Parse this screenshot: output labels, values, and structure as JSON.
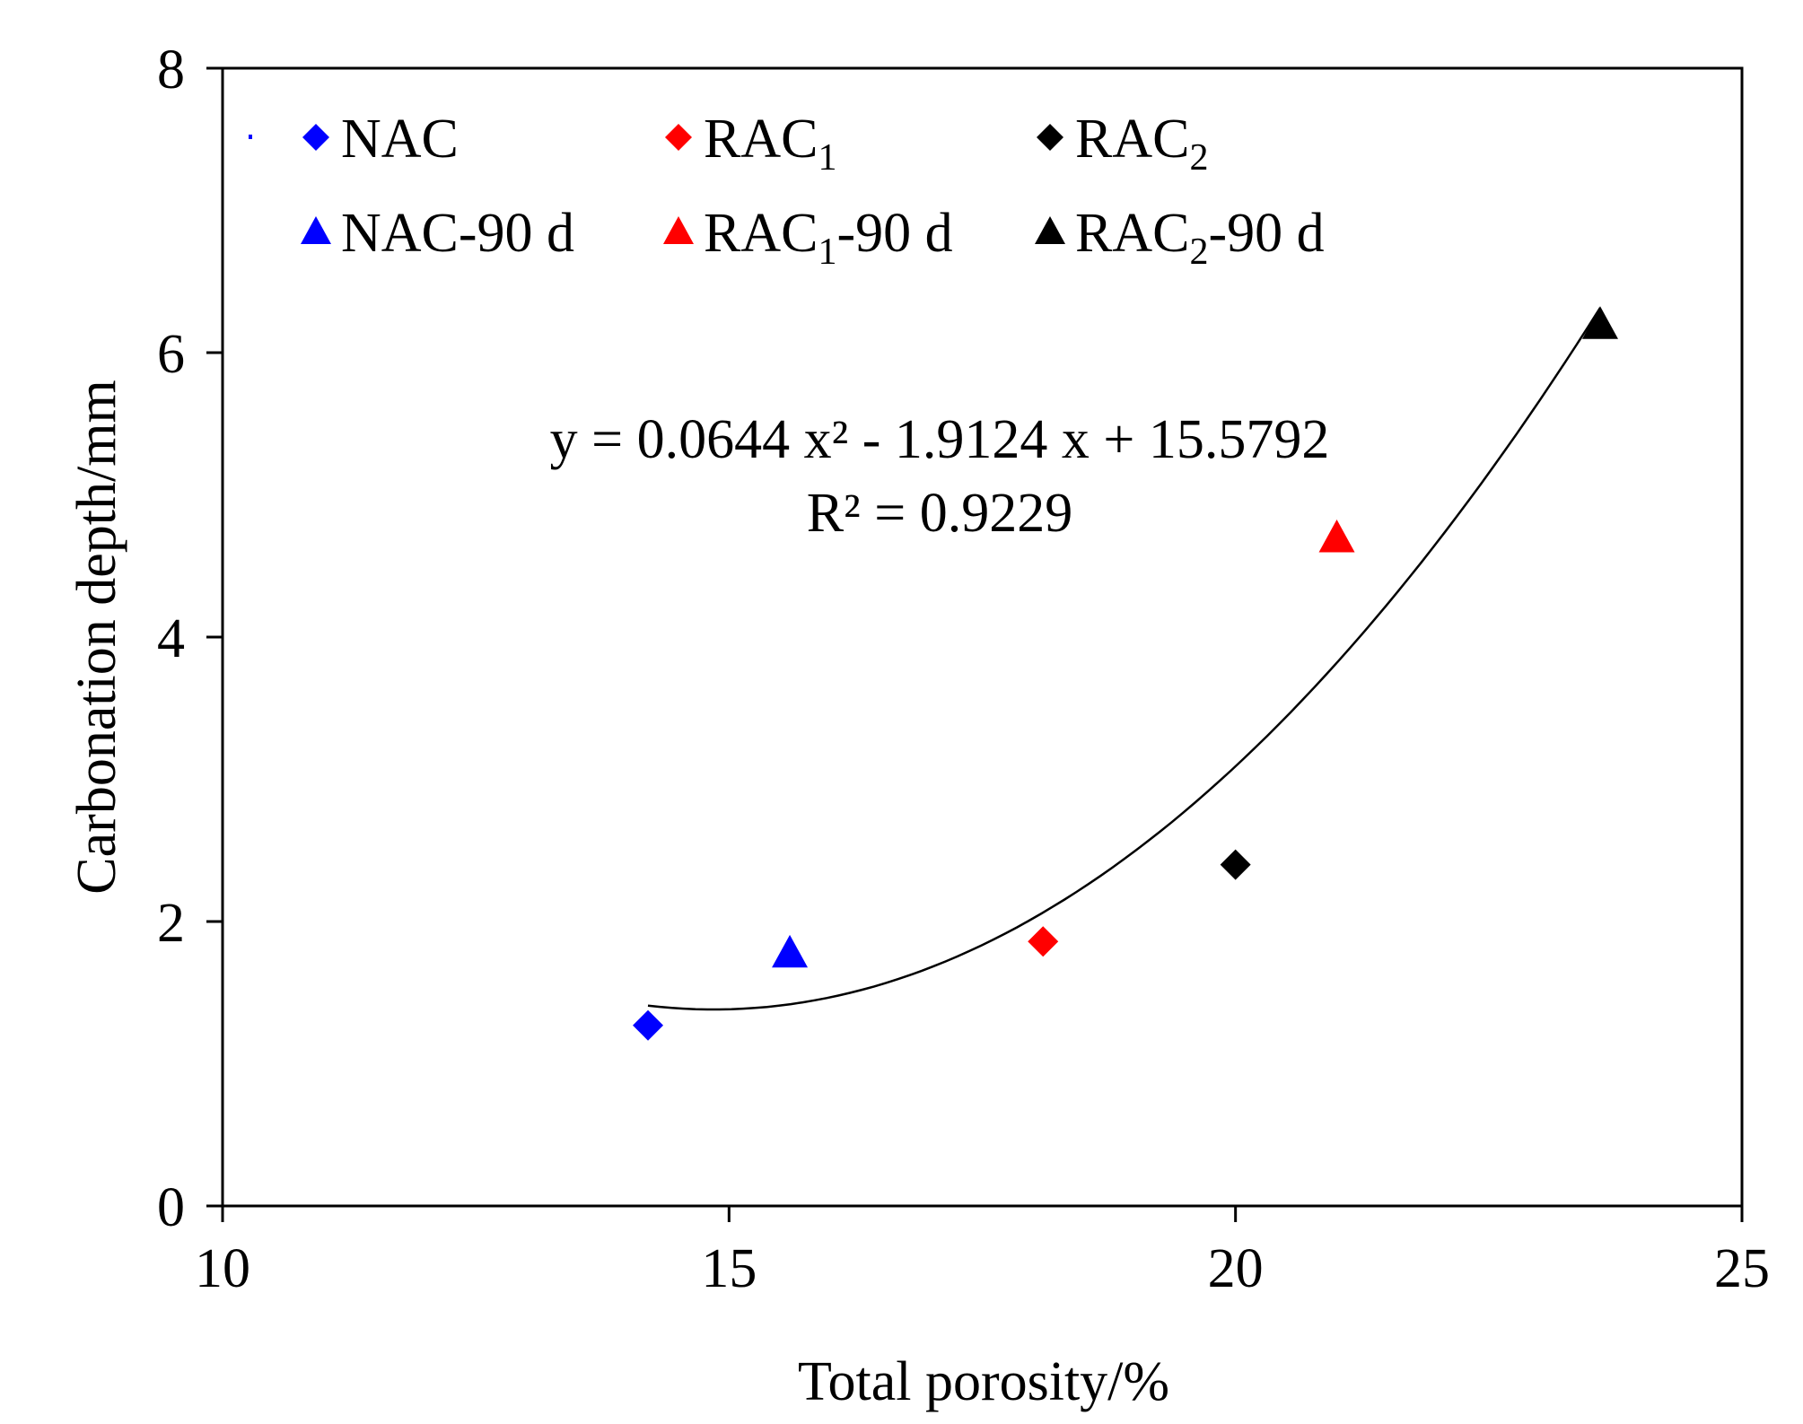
{
  "chart_data": {
    "type": "scatter",
    "title": "",
    "xlabel": "Total porosity/%",
    "ylabel": "Carbonation depth/mm",
    "xlim": [
      10,
      25
    ],
    "ylim": [
      0,
      8
    ],
    "xticks": [
      10,
      15,
      20,
      25
    ],
    "yticks": [
      0,
      2,
      4,
      6,
      8
    ],
    "grid": false,
    "legend_position": "top",
    "series": [
      {
        "name": "NAC",
        "base": "NAC",
        "sub": "",
        "suffix": "",
        "marker": "diamond",
        "color": "#0000ff",
        "points": [
          [
            14.2,
            1.27
          ]
        ]
      },
      {
        "name": "RAC1",
        "base": "RAC",
        "sub": "1",
        "suffix": "",
        "marker": "diamond",
        "color": "#ff0000",
        "points": [
          [
            18.1,
            1.86
          ]
        ]
      },
      {
        "name": "RAC2",
        "base": "RAC",
        "sub": "2",
        "suffix": "",
        "marker": "diamond",
        "color": "#000000",
        "points": [
          [
            20.0,
            2.4
          ]
        ]
      },
      {
        "name": "NAC-90 d",
        "base": "NAC-90 d",
        "sub": "",
        "suffix": "",
        "marker": "triangle",
        "color": "#0000ff",
        "points": [
          [
            15.6,
            1.78
          ]
        ]
      },
      {
        "name": "RAC1-90 d",
        "base": "RAC",
        "sub": "1",
        "suffix": "-90 d",
        "marker": "triangle",
        "color": "#ff0000",
        "points": [
          [
            21.0,
            4.7
          ]
        ]
      },
      {
        "name": "RAC2-90 d",
        "base": "RAC",
        "sub": "2",
        "suffix": "-90 d",
        "marker": "triangle",
        "color": "#000000",
        "points": [
          [
            23.6,
            6.2
          ]
        ]
      }
    ],
    "trendline": {
      "type": "polynomial",
      "coefficients": [
        0.0644,
        -1.9124,
        15.5792
      ],
      "x_range": [
        14.2,
        23.6
      ],
      "equation_text": "y = 0.0644 x² - 1.9124 x + 15.5792",
      "r2_text": "R² = 0.9229",
      "color": "#000000"
    }
  }
}
